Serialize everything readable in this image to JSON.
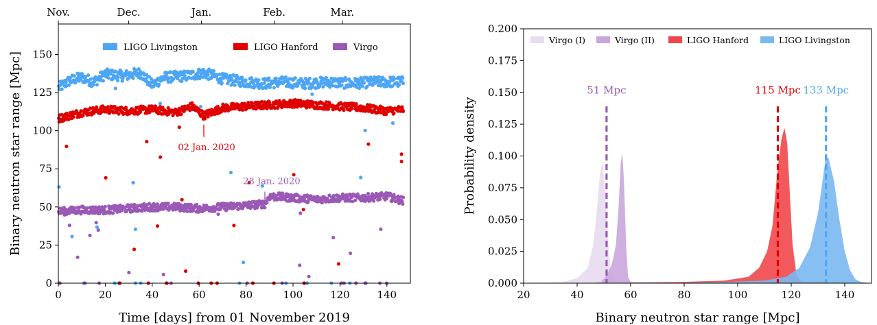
{
  "chart_data": [
    {
      "type": "scatter",
      "xlabel": "Time [days] from 01 November 2019",
      "ylabel": "Binary neutron star range [Mpc]",
      "xlim": [
        0,
        150
      ],
      "ylim": [
        0,
        170
      ],
      "xticks": [
        "0",
        "20",
        "40",
        "60",
        "80",
        "100",
        "120",
        "140"
      ],
      "xtick_values": [
        0,
        20,
        40,
        60,
        80,
        100,
        120,
        140
      ],
      "yticks": [
        "0",
        "25",
        "50",
        "75",
        "100",
        "125",
        "150"
      ],
      "ytick_values": [
        0,
        25,
        50,
        75,
        100,
        125,
        150
      ],
      "top_axis_ticks": [
        "Nov.",
        "Dec.",
        "Jan.",
        "Feb.",
        "Mar."
      ],
      "top_axis_values": [
        0,
        30,
        61,
        92,
        121
      ],
      "legend_position": "top",
      "series": [
        {
          "name": "LIGO Livingston",
          "color": "#4da6f5",
          "trend": [
            [
              0,
              128
            ],
            [
              5,
              133
            ],
            [
              10,
              135
            ],
            [
              15,
              132
            ],
            [
              20,
              137
            ],
            [
              28,
              136
            ],
            [
              35,
              138
            ],
            [
              40,
              130
            ],
            [
              45,
              135
            ],
            [
              55,
              136
            ],
            [
              62,
              138
            ],
            [
              70,
              134
            ],
            [
              80,
              132
            ],
            [
              88,
              131
            ],
            [
              95,
              132
            ],
            [
              105,
              131
            ],
            [
              115,
              132
            ],
            [
              125,
              131
            ],
            [
              135,
              132
            ],
            [
              147,
              132
            ]
          ],
          "spread": 3.5
        },
        {
          "name": "LIGO Hanford",
          "color": "#e00000",
          "trend": [
            [
              0,
              108
            ],
            [
              5,
              110
            ],
            [
              10,
              112
            ],
            [
              20,
              114
            ],
            [
              30,
              113
            ],
            [
              40,
              114
            ],
            [
              50,
              112
            ],
            [
              57,
              116
            ],
            [
              62,
              110
            ],
            [
              70,
              115
            ],
            [
              80,
              116
            ],
            [
              90,
              117
            ],
            [
              100,
              118
            ],
            [
              110,
              117
            ],
            [
              120,
              116
            ],
            [
              130,
              115
            ],
            [
              140,
              113
            ],
            [
              147,
              114
            ]
          ],
          "spread": 2.5
        },
        {
          "name": "Virgo",
          "color": "#9b59b6",
          "trend": [
            [
              0,
              47
            ],
            [
              10,
              48
            ],
            [
              20,
              48
            ],
            [
              30,
              49
            ],
            [
              40,
              50
            ],
            [
              50,
              50
            ],
            [
              60,
              49
            ],
            [
              70,
              50
            ],
            [
              80,
              51
            ],
            [
              88,
              52
            ],
            [
              90,
              57
            ],
            [
              100,
              56
            ],
            [
              110,
              55
            ],
            [
              120,
              56
            ],
            [
              130,
              56
            ],
            [
              140,
              57
            ],
            [
              147,
              54
            ]
          ],
          "spread": 2.5
        }
      ],
      "annotations": [
        {
          "text": "02 Jan. 2020",
          "x": 62,
          "y": 104,
          "color": "#e00000"
        },
        {
          "text": "28 Jan. 2020",
          "x": 88,
          "y": 60,
          "color": "#9b59b6"
        }
      ]
    },
    {
      "type": "area",
      "xlabel": "Binary neutron star range [Mpc]",
      "ylabel": "Probability density",
      "xlim": [
        20,
        150
      ],
      "ylim": [
        0,
        0.2
      ],
      "xticks": [
        "20",
        "40",
        "60",
        "80",
        "100",
        "120",
        "140"
      ],
      "xtick_values": [
        20,
        40,
        60,
        80,
        100,
        120,
        140
      ],
      "yticks": [
        "0.000",
        "0.025",
        "0.050",
        "0.075",
        "0.100",
        "0.125",
        "0.150",
        "0.175",
        "0.200"
      ],
      "ytick_values": [
        0,
        0.025,
        0.05,
        0.075,
        0.1,
        0.125,
        0.15,
        0.175,
        0.2
      ],
      "legend_position": "top",
      "series": [
        {
          "name": "Virgo (I)",
          "color": "#e8dcef",
          "points": [
            [
              20,
              0
            ],
            [
              35,
              0.001
            ],
            [
              40,
              0.004
            ],
            [
              44,
              0.012
            ],
            [
              46,
              0.03
            ],
            [
              47.5,
              0.06
            ],
            [
              48.5,
              0.085
            ],
            [
              49.5,
              0.096
            ],
            [
              50.5,
              0.07
            ],
            [
              51.5,
              0.035
            ],
            [
              52.5,
              0.01
            ],
            [
              54,
              0.002
            ],
            [
              56,
              0
            ],
            [
              150,
              0
            ]
          ]
        },
        {
          "name": "Virgo (II)",
          "color": "#c9a6dc",
          "points": [
            [
              20,
              0
            ],
            [
              45,
              0
            ],
            [
              49,
              0.001
            ],
            [
              51,
              0.006
            ],
            [
              53,
              0.015
            ],
            [
              54.5,
              0.03
            ],
            [
              55.5,
              0.06
            ],
            [
              56.3,
              0.095
            ],
            [
              56.9,
              0.102
            ],
            [
              57.5,
              0.08
            ],
            [
              58.3,
              0.03
            ],
            [
              59,
              0.005
            ],
            [
              60,
              0.001
            ],
            [
              150,
              0
            ]
          ]
        },
        {
          "name": "LIGO Hanford",
          "color": "#f0474a",
          "points": [
            [
              20,
              0
            ],
            [
              60,
              0
            ],
            [
              80,
              0.001
            ],
            [
              95,
              0.002
            ],
            [
              104,
              0.005
            ],
            [
              108,
              0.012
            ],
            [
              111,
              0.025
            ],
            [
              113,
              0.045
            ],
            [
              114.5,
              0.08
            ],
            [
              115.5,
              0.1
            ],
            [
              116.5,
              0.115
            ],
            [
              117.5,
              0.122
            ],
            [
              118.5,
              0.11
            ],
            [
              119.5,
              0.07
            ],
            [
              120.5,
              0.03
            ],
            [
              122,
              0.006
            ],
            [
              124,
              0.001
            ],
            [
              150,
              0
            ]
          ]
        },
        {
          "name": "LIGO Livingston",
          "color": "#7ab8f2",
          "points": [
            [
              20,
              0
            ],
            [
              70,
              0
            ],
            [
              95,
              0.001
            ],
            [
              110,
              0.002
            ],
            [
              118,
              0.005
            ],
            [
              123,
              0.012
            ],
            [
              127,
              0.028
            ],
            [
              130,
              0.055
            ],
            [
              132,
              0.085
            ],
            [
              133,
              0.1
            ],
            [
              134,
              0.098
            ],
            [
              136,
              0.08
            ],
            [
              138,
              0.05
            ],
            [
              140,
              0.025
            ],
            [
              142,
              0.01
            ],
            [
              144,
              0.003
            ],
            [
              146,
              0.001
            ],
            [
              150,
              0
            ]
          ]
        }
      ],
      "vlines": [
        {
          "x": 51,
          "label": "51 Mpc",
          "color": "#9b59b6"
        },
        {
          "x": 115,
          "label": "115 Mpc",
          "color": "#e00000"
        },
        {
          "x": 133,
          "label": "133 Mpc",
          "color": "#4da6f5"
        }
      ]
    }
  ]
}
